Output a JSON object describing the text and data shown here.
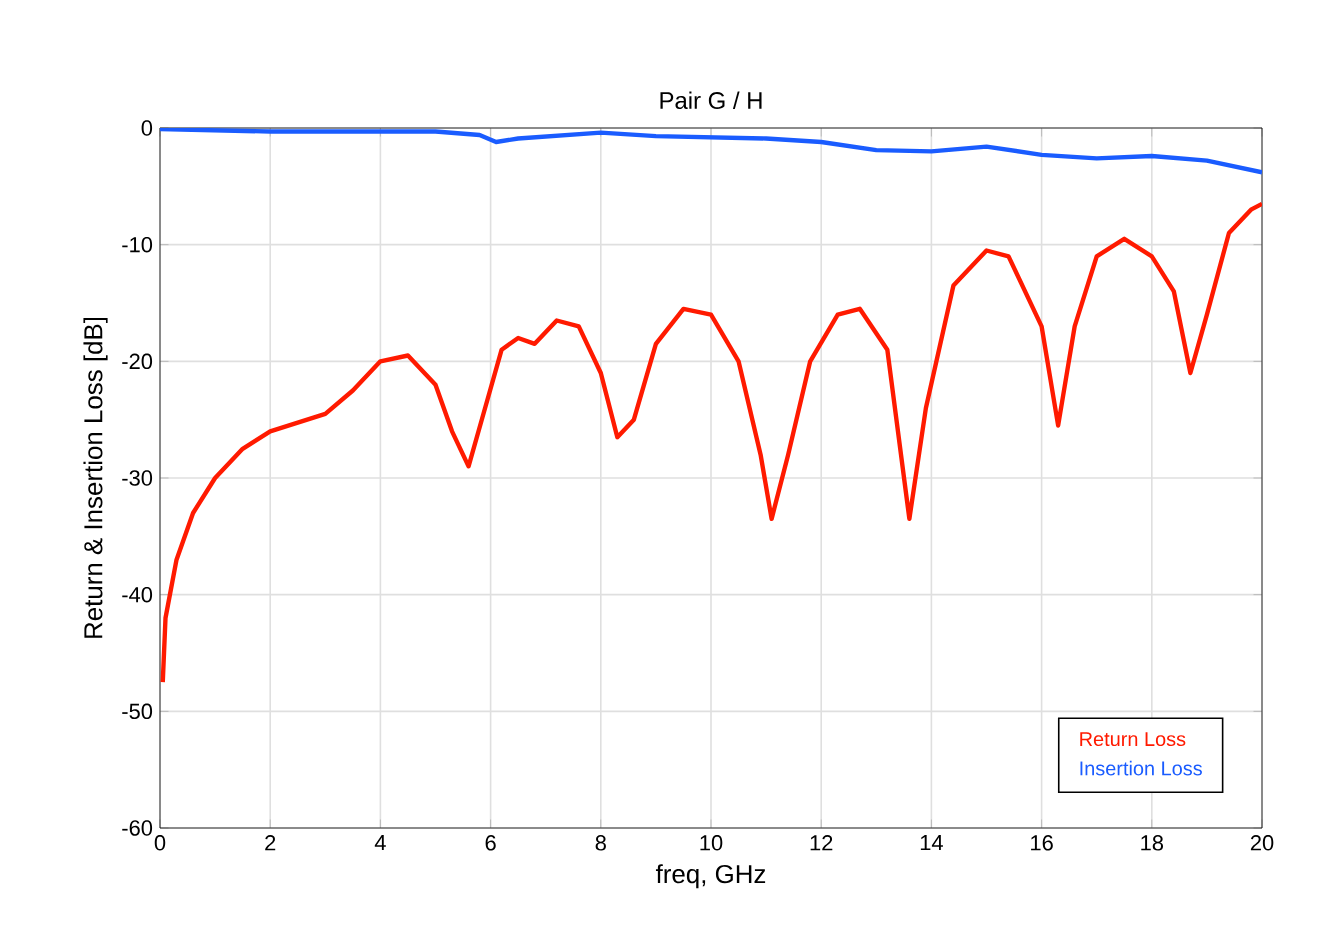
{
  "chart_data": {
    "type": "line",
    "title": "Pair G / H",
    "xlabel": "freq, GHz",
    "ylabel": "Return & Insertion Loss [dB]",
    "xlim": [
      0,
      20
    ],
    "xticks": [
      0,
      2,
      4,
      6,
      8,
      10,
      12,
      14,
      16,
      18,
      20
    ],
    "ylim": [
      -60,
      0
    ],
    "yticks": [
      -60,
      -50,
      -40,
      -30,
      -20,
      -10,
      0
    ],
    "grid": true,
    "legend": "bottom right",
    "series": [
      {
        "name": "Return Loss",
        "color": "#ff1a00",
        "x": [
          0.05,
          0.1,
          0.3,
          0.6,
          1,
          1.5,
          2,
          3,
          3.5,
          4,
          4.5,
          5,
          5.3,
          5.6,
          5.9,
          6.2,
          6.5,
          6.8,
          7.2,
          7.6,
          8.0,
          8.3,
          8.6,
          9.0,
          9.5,
          10,
          10.5,
          10.9,
          11.1,
          11.4,
          11.8,
          12.3,
          12.7,
          13.2,
          13.6,
          13.9,
          14.4,
          15,
          15.4,
          16,
          16.3,
          16.6,
          17,
          17.5,
          18,
          18.4,
          18.7,
          19,
          19.4,
          19.8,
          20
        ],
        "values": [
          -47.5,
          -42,
          -37,
          -33,
          -30,
          -27.5,
          -26,
          -24.5,
          -22.5,
          -20,
          -19.5,
          -22,
          -26,
          -29,
          -24,
          -19,
          -18,
          -18.5,
          -16.5,
          -17,
          -21,
          -26.5,
          -25,
          -18.5,
          -15.5,
          -16,
          -20,
          -28,
          -33.5,
          -28,
          -20,
          -16,
          -15.5,
          -19,
          -33.5,
          -24,
          -13.5,
          -10.5,
          -11,
          -17,
          -25.5,
          -17,
          -11,
          -9.5,
          -11,
          -14,
          -21,
          -16,
          -9,
          -7,
          -6.5
        ]
      },
      {
        "name": "Insertion Loss",
        "color": "#1a5cff",
        "x": [
          0,
          2,
          5,
          5.8,
          6.1,
          6.5,
          8,
          9,
          11,
          12,
          13,
          14,
          15,
          16,
          17,
          18,
          19,
          20
        ],
        "values": [
          -0.1,
          -0.3,
          -0.3,
          -0.6,
          -1.2,
          -0.9,
          -0.4,
          -0.7,
          -0.9,
          -1.2,
          -1.9,
          -2.0,
          -1.6,
          -2.3,
          -2.6,
          -2.4,
          -2.8,
          -3.8
        ]
      }
    ]
  }
}
